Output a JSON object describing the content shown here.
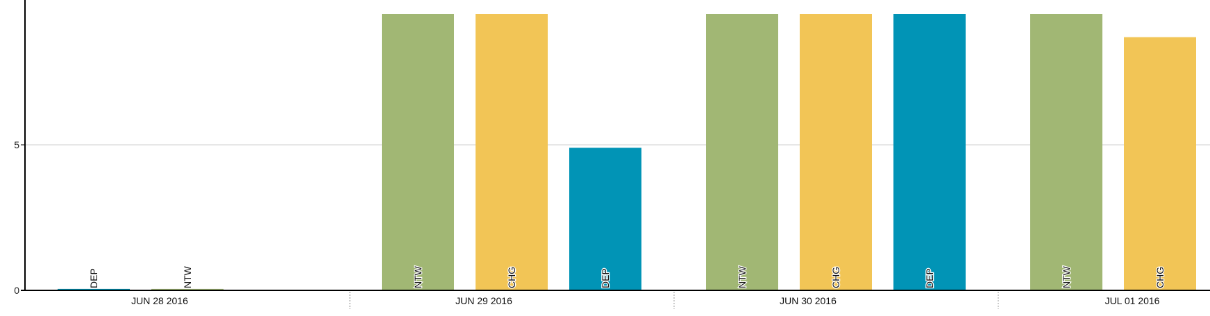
{
  "chart_data": {
    "type": "bar",
    "categories": [
      "JUN 28 2016",
      "JUN 29 2016",
      "JUN 30 2016",
      "JUL 01 2016"
    ],
    "y_ticks": [
      "0",
      "5"
    ],
    "ylim": [
      0,
      9.5
    ],
    "grid": true,
    "groups": [
      {
        "category": "JUN 28 2016",
        "bars": [
          {
            "label": "DEP",
            "value": 0.05,
            "color": "#0194b6"
          },
          {
            "label": "NTW",
            "value": 0.05,
            "color": "#a1b774"
          }
        ]
      },
      {
        "category": "JUN 29 2016",
        "bars": [
          {
            "label": "NTW",
            "value": 9.5,
            "color": "#a1b774"
          },
          {
            "label": "CHG",
            "value": 9.5,
            "color": "#f2c556"
          },
          {
            "label": "DEP",
            "value": 4.9,
            "color": "#0194b6"
          }
        ]
      },
      {
        "category": "JUN 30 2016",
        "bars": [
          {
            "label": "NTW",
            "value": 9.5,
            "color": "#a1b774"
          },
          {
            "label": "CHG",
            "value": 9.5,
            "color": "#f2c556"
          },
          {
            "label": "DEP",
            "value": 9.5,
            "color": "#0194b6"
          }
        ]
      },
      {
        "category": "JUL 01 2016",
        "bars": [
          {
            "label": "NTW",
            "value": 9.5,
            "color": "#a1b774"
          },
          {
            "label": "CHG",
            "value": 8.7,
            "color": "#f2c556"
          }
        ]
      }
    ]
  }
}
